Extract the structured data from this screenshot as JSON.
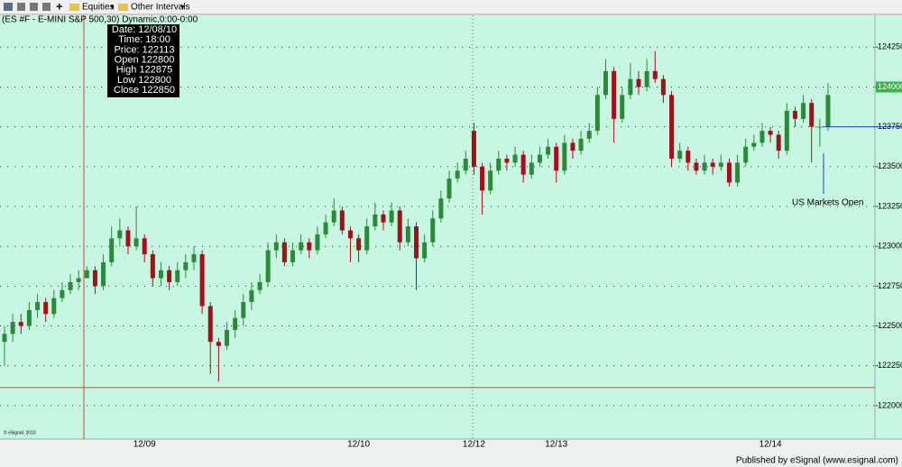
{
  "toolbar": {
    "items": [
      "Equities",
      "Other Intervals"
    ]
  },
  "chart_data": {
    "type": "candlestick",
    "title": "(ES #F - E-MINI S&P 500,30) Dynamic,0:00-0:00",
    "categories": [
      null,
      null,
      null,
      null,
      null,
      null,
      null,
      null,
      null,
      null,
      null,
      null,
      null,
      null,
      null,
      null,
      null,
      "12/09",
      null,
      null,
      null,
      null,
      null,
      null,
      null,
      null,
      null,
      null,
      null,
      null,
      null,
      null,
      null,
      null,
      null,
      null,
      null,
      null,
      null,
      null,
      null,
      null,
      null,
      "12/10",
      null,
      null,
      null,
      null,
      null,
      null,
      null,
      null,
      null,
      null,
      null,
      null,
      null,
      "12/12",
      null,
      null,
      null,
      null,
      null,
      null,
      null,
      null,
      null,
      "12/13",
      null,
      null,
      null,
      null,
      null,
      null,
      null,
      null,
      null,
      null,
      null,
      null,
      null,
      null,
      null,
      null,
      null,
      null,
      null,
      null,
      null,
      null,
      null,
      null,
      null,
      "12/14",
      null,
      null,
      null,
      null,
      null,
      null,
      null
    ],
    "open": [
      122400,
      122450,
      122525,
      122500,
      122600,
      122650,
      122575,
      122675,
      122725,
      122775,
      122800,
      122850,
      122750,
      122900,
      123050,
      123100,
      123000,
      123050,
      122950,
      122800,
      122850,
      122775,
      122850,
      122900,
      122950,
      122625,
      122400,
      122375,
      122475,
      122550,
      122650,
      122725,
      122775,
      122975,
      123025,
      122900,
      122975,
      123025,
      122975,
      123075,
      123150,
      123225,
      123100,
      123050,
      122975,
      123125,
      123200,
      123150,
      123225,
      123025,
      123125,
      122925,
      123025,
      123175,
      123300,
      123425,
      123475,
      123725,
      123500,
      123350,
      123475,
      123550,
      123525,
      123575,
      123450,
      123525,
      123575,
      123625,
      123475,
      123650,
      123600,
      123675,
      123725,
      123950,
      124100,
      123800,
      123950,
      124050,
      124000,
      124100,
      124050,
      123950,
      123550,
      123600,
      123525,
      123475,
      123525,
      123500,
      123525,
      123400,
      123525,
      123625,
      123650,
      123725,
      123700,
      123600,
      123850,
      123800,
      123900,
      123750,
      123750
    ],
    "high": [
      122500,
      122575,
      122575,
      122650,
      122700,
      122675,
      122725,
      122775,
      122825,
      122850,
      122875,
      122875,
      122950,
      123125,
      123175,
      123125,
      123250,
      123075,
      122975,
      122900,
      122875,
      122900,
      122950,
      123000,
      122975,
      122650,
      122425,
      122525,
      122600,
      122700,
      122775,
      122825,
      123025,
      123075,
      123050,
      123025,
      123075,
      123050,
      123125,
      123200,
      123300,
      123250,
      123125,
      123075,
      123175,
      123275,
      123225,
      123275,
      123250,
      123175,
      123150,
      123075,
      123225,
      123350,
      123475,
      123525,
      123600,
      123775,
      123525,
      123525,
      123600,
      123575,
      123625,
      123600,
      123575,
      123625,
      123675,
      123650,
      123700,
      123675,
      123725,
      123775,
      124000,
      124175,
      124125,
      124000,
      124150,
      124100,
      124175,
      124225,
      124075,
      123975,
      123650,
      123625,
      123550,
      123575,
      123550,
      123575,
      123550,
      123575,
      123675,
      123700,
      123775,
      123750,
      123725,
      123900,
      123875,
      123950,
      123925,
      123800,
      124025
    ],
    "low": [
      122250,
      122400,
      122450,
      122475,
      122550,
      122525,
      122550,
      122650,
      122700,
      122725,
      122800,
      122700,
      122725,
      122875,
      123000,
      122950,
      122975,
      122900,
      122750,
      122750,
      122725,
      122750,
      122800,
      122850,
      122575,
      122200,
      122150,
      122350,
      122425,
      122500,
      122600,
      122700,
      122750,
      122925,
      122875,
      122875,
      122950,
      122925,
      122950,
      123050,
      123125,
      123075,
      122900,
      122900,
      122950,
      123100,
      123100,
      123125,
      122975,
      123000,
      122725,
      122900,
      123000,
      123150,
      123275,
      123400,
      123450,
      123450,
      123200,
      123325,
      123450,
      123475,
      123500,
      123400,
      123425,
      123500,
      123550,
      123400,
      123450,
      123550,
      123575,
      123650,
      123700,
      123925,
      123650,
      123775,
      123925,
      123950,
      123975,
      124025,
      123900,
      123500,
      123525,
      123475,
      123450,
      123450,
      123450,
      123475,
      123375,
      123375,
      123500,
      123600,
      123625,
      123650,
      123550,
      123575,
      123750,
      123775,
      123525,
      123625,
      123725
    ],
    "close": [
      122450,
      122525,
      122500,
      122600,
      122650,
      122575,
      122675,
      122725,
      122775,
      122800,
      122850,
      122750,
      122900,
      123050,
      123100,
      123000,
      123050,
      122950,
      122800,
      122850,
      122775,
      122850,
      122900,
      122950,
      122625,
      122400,
      122375,
      122475,
      122550,
      122650,
      122725,
      122775,
      122975,
      123025,
      122900,
      122975,
      123025,
      122975,
      123075,
      123150,
      123225,
      123100,
      123050,
      122975,
      123125,
      123200,
      123150,
      123225,
      123025,
      123125,
      122925,
      123025,
      123175,
      123300,
      123425,
      123475,
      123550,
      123500,
      123350,
      123475,
      123550,
      123525,
      123575,
      123450,
      123525,
      123575,
      123625,
      123475,
      123650,
      123600,
      123675,
      123725,
      123950,
      124100,
      123800,
      123950,
      124050,
      124000,
      124100,
      124050,
      123950,
      123550,
      123600,
      123525,
      123475,
      123525,
      123500,
      123525,
      123400,
      123525,
      123625,
      123650,
      123725,
      123700,
      123600,
      123850,
      123800,
      123900,
      123750,
      123750,
      123950
    ],
    "up_color": "#2a8a3a",
    "down_color": "#a3101a",
    "ylim": [
      121790,
      124450
    ],
    "yticks": [
      122000,
      122250,
      122500,
      122750,
      123000,
      123250,
      123500,
      123750,
      124000,
      124250
    ],
    "grid": true,
    "last_price": 124000,
    "crosshair_price": 122113,
    "reference_line": 123750,
    "annotation": "US Markets Open",
    "tooltip": [
      "Date: 12/08/10",
      "Time: 18:00",
      "Price: 122113",
      "Open 122800",
      "High 122875",
      "Low 122800",
      "Close 122850"
    ],
    "copyright": "© eSignal, 2010",
    "footer": "Published by eSignal (www.esignal.com)"
  }
}
